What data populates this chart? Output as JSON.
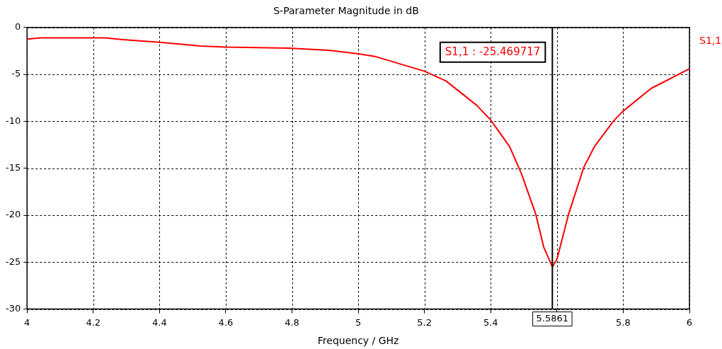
{
  "chart_data": {
    "type": "line",
    "title": "S-Parameter Magnitude in dB",
    "xlabel": "Frequency / GHz",
    "x": [
      4.0,
      4.04,
      4.236,
      4.29,
      4.4,
      4.524,
      4.6,
      4.789,
      4.91,
      5.0,
      5.05,
      5.2,
      5.265,
      5.358,
      5.4,
      5.457,
      5.493,
      5.536,
      5.56,
      5.5861,
      5.6,
      5.635,
      5.681,
      5.713,
      5.77,
      5.798,
      5.884,
      6.0
    ],
    "series": [
      {
        "name": "S1,1",
        "color": "#ff0000",
        "values": [
          -1.24,
          -1.1,
          -1.1,
          -1.3,
          -1.58,
          -1.97,
          -2.08,
          -2.2,
          -2.42,
          -2.8,
          -3.08,
          -4.66,
          -5.7,
          -8.3,
          -9.87,
          -12.7,
          -15.6,
          -19.9,
          -23.4,
          -25.5,
          -24.7,
          -19.9,
          -14.9,
          -12.7,
          -10.0,
          -8.96,
          -6.5,
          -4.4
        ]
      }
    ],
    "xlim": [
      4,
      6
    ],
    "xticks": [
      4,
      4.2,
      4.4,
      4.6,
      4.8,
      5,
      5.2,
      5.4,
      {
        "value": 5.6,
        "label": null
      },
      5.8,
      6
    ],
    "ylim": [
      -30,
      0
    ],
    "yticks": [
      -30,
      -25,
      -20,
      -15,
      -10,
      -5,
      0
    ],
    "grid": true,
    "legend": "right",
    "marker": "none",
    "line_style": "solid",
    "ref_lines": [
      {
        "axis": "x",
        "value": 5.5861,
        "label": "5.5861",
        "color": "#000000"
      }
    ],
    "annotations": [
      "S1,1 : -25.469717"
    ]
  }
}
